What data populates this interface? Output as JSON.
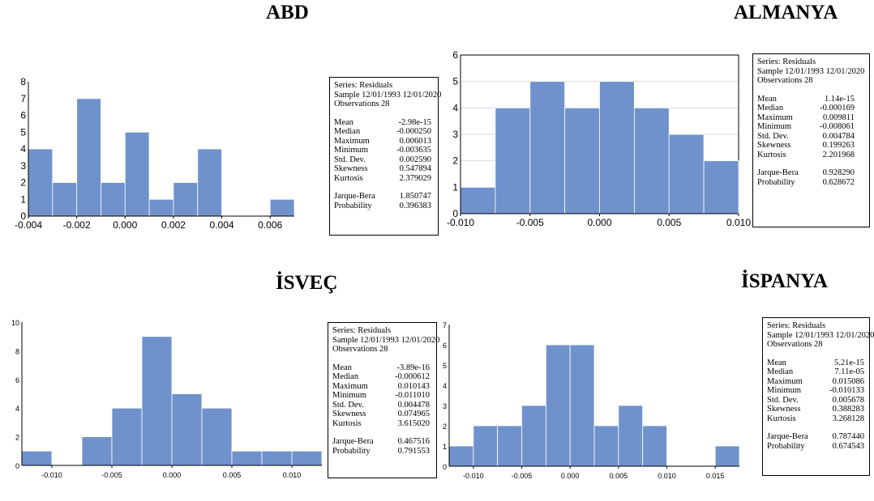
{
  "panels": [
    {
      "country": "ABD",
      "stats": {
        "series_line": "Series: Residuals",
        "sample_line": "Sample 12/01/1993 12/01/2020",
        "obs_line": "Observations 28",
        "rows": [
          {
            "label": "Mean",
            "value": "-2.98e-15"
          },
          {
            "label": "Median",
            "value": "-0.000250"
          },
          {
            "label": "Maximum",
            "value": "0.006013"
          },
          {
            "label": "Minimum",
            "value": "-0.003635"
          },
          {
            "label": "Std. Dev.",
            "value": "0.002590"
          },
          {
            "label": "Skewness",
            "value": "0.547894"
          },
          {
            "label": "Kurtosis",
            "value": "2.379029"
          }
        ],
        "test_rows": [
          {
            "label": "Jarque-Bera",
            "value": "1.850747"
          },
          {
            "label": "Probability",
            "value": "0.396383"
          }
        ]
      }
    },
    {
      "country": "ALMANYA",
      "stats": {
        "series_line": "Series: Residuals",
        "sample_line": "Sample 12/01/1993 12/01/2020",
        "obs_line": "Observations 28",
        "rows": [
          {
            "label": "Mean",
            "value": "1.14e-15"
          },
          {
            "label": "Median",
            "value": "-0.000169"
          },
          {
            "label": "Maximum",
            "value": "0.009811"
          },
          {
            "label": "Minimum",
            "value": "-0.008061"
          },
          {
            "label": "Std. Dev.",
            "value": "0.004784"
          },
          {
            "label": "Skewness",
            "value": "0.199263"
          },
          {
            "label": "Kurtosis",
            "value": "2.201968"
          }
        ],
        "test_rows": [
          {
            "label": "Jarque-Bera",
            "value": "0.928290"
          },
          {
            "label": "Probability",
            "value": "0.628672"
          }
        ]
      }
    },
    {
      "country": "İSVEÇ",
      "stats": {
        "series_line": "Series: Residuals",
        "sample_line": "Sample 12/01/1993 12/01/2020",
        "obs_line": "Observations 28",
        "rows": [
          {
            "label": "Mean",
            "value": "-3.89e-16"
          },
          {
            "label": "Median",
            "value": "-0.000612"
          },
          {
            "label": "Maximum",
            "value": "0.010143"
          },
          {
            "label": "Minimum",
            "value": "-0.011010"
          },
          {
            "label": "Std. Dev.",
            "value": "0.004478"
          },
          {
            "label": "Skewness",
            "value": "0.074965"
          },
          {
            "label": "Kurtosis",
            "value": "3.615020"
          }
        ],
        "test_rows": [
          {
            "label": "Jarque-Bera",
            "value": "0.467516"
          },
          {
            "label": "Probability",
            "value": "0.791553"
          }
        ]
      }
    },
    {
      "country": "İSPANYA",
      "stats": {
        "series_line": "Series: Residuals",
        "sample_line": "Sample 12/01/1993 12/01/2020",
        "obs_line": "Observations 28",
        "rows": [
          {
            "label": "Mean",
            "value": "5.21e-15"
          },
          {
            "label": "Median",
            "value": "7.11e-05"
          },
          {
            "label": "Maximum",
            "value": "0.015086"
          },
          {
            "label": "Minimum",
            "value": "-0.010133"
          },
          {
            "label": "Std. Dev.",
            "value": "0.005678"
          },
          {
            "label": "Skewness",
            "value": "0.388283"
          },
          {
            "label": "Kurtosis",
            "value": "3.268128"
          }
        ],
        "test_rows": [
          {
            "label": "Jarque-Bera",
            "value": "0.787440"
          },
          {
            "label": "Probability",
            "value": "0.674543"
          }
        ]
      }
    }
  ],
  "chart_data": [
    {
      "type": "bar",
      "title": "ABD",
      "bar_color": "#7092cc",
      "bins": [
        {
          "x0": -0.004,
          "x1": -0.003,
          "count": 4
        },
        {
          "x0": -0.003,
          "x1": -0.002,
          "count": 2
        },
        {
          "x0": -0.002,
          "x1": -0.001,
          "count": 7
        },
        {
          "x0": -0.001,
          "x1": 0.0,
          "count": 2
        },
        {
          "x0": 0.0,
          "x1": 0.001,
          "count": 5
        },
        {
          "x0": 0.001,
          "x1": 0.002,
          "count": 1
        },
        {
          "x0": 0.002,
          "x1": 0.003,
          "count": 2
        },
        {
          "x0": 0.003,
          "x1": 0.004,
          "count": 4
        },
        {
          "x0": 0.006,
          "x1": 0.007,
          "count": 1
        }
      ],
      "xlim": [
        -0.004,
        0.007
      ],
      "ylim": [
        0,
        8
      ],
      "x_ticks": [
        -0.004,
        -0.002,
        0.0,
        0.002,
        0.004,
        0.006
      ],
      "x_tick_labels": [
        "-0.004",
        "-0.002",
        "0.000",
        "0.002",
        "0.004",
        "0.006"
      ],
      "y_ticks": [
        0,
        1,
        2,
        3,
        4,
        5,
        6,
        7,
        8
      ],
      "y_tick_labels": [
        "0",
        "1",
        "2",
        "3",
        "4",
        "5",
        "6",
        "7",
        "8"
      ],
      "grid": false
    },
    {
      "type": "bar",
      "title": "ALMANYA",
      "bar_color": "#7092cc",
      "bins": [
        {
          "x0": -0.01,
          "x1": -0.0075,
          "count": 1
        },
        {
          "x0": -0.0075,
          "x1": -0.005,
          "count": 4
        },
        {
          "x0": -0.005,
          "x1": -0.0025,
          "count": 5
        },
        {
          "x0": -0.0025,
          "x1": 0.0,
          "count": 4
        },
        {
          "x0": 0.0,
          "x1": 0.0025,
          "count": 5
        },
        {
          "x0": 0.0025,
          "x1": 0.005,
          "count": 4
        },
        {
          "x0": 0.005,
          "x1": 0.0075,
          "count": 3
        },
        {
          "x0": 0.0075,
          "x1": 0.01,
          "count": 2
        }
      ],
      "xlim": [
        -0.01,
        0.01
      ],
      "ylim": [
        0,
        6
      ],
      "x_ticks": [
        -0.01,
        -0.005,
        0.0,
        0.005,
        0.01
      ],
      "x_tick_labels": [
        "-0.010",
        "-0.005",
        "0.000",
        "0.005",
        "0.010"
      ],
      "y_ticks": [
        0,
        1,
        2,
        3,
        4,
        5,
        6
      ],
      "y_tick_labels": [
        "0",
        "1",
        "2",
        "3",
        "4",
        "5",
        "6"
      ],
      "grid": true
    },
    {
      "type": "bar",
      "title": "İSVEÇ",
      "bar_color": "#7092cc",
      "bins": [
        {
          "x0": -0.0125,
          "x1": -0.01,
          "count": 1
        },
        {
          "x0": -0.0075,
          "x1": -0.005,
          "count": 2
        },
        {
          "x0": -0.005,
          "x1": -0.0025,
          "count": 4
        },
        {
          "x0": -0.0025,
          "x1": 0.0,
          "count": 9
        },
        {
          "x0": 0.0,
          "x1": 0.0025,
          "count": 5
        },
        {
          "x0": 0.0025,
          "x1": 0.005,
          "count": 4
        },
        {
          "x0": 0.005,
          "x1": 0.0075,
          "count": 1
        },
        {
          "x0": 0.0075,
          "x1": 0.01,
          "count": 1
        },
        {
          "x0": 0.01,
          "x1": 0.0125,
          "count": 1
        }
      ],
      "xlim": [
        -0.0125,
        0.0125
      ],
      "ylim": [
        0,
        10
      ],
      "x_ticks": [
        -0.01,
        -0.005,
        0.0,
        0.005,
        0.01
      ],
      "x_tick_labels": [
        "-0.010",
        "-0.005",
        "0.000",
        "0.005",
        "0.010"
      ],
      "y_ticks": [
        0,
        2,
        4,
        6,
        8,
        10
      ],
      "y_tick_labels": [
        "0",
        "2",
        "4",
        "6",
        "8",
        "10"
      ],
      "grid": false
    },
    {
      "type": "bar",
      "title": "İSPANYA",
      "bar_color": "#7092cc",
      "bins": [
        {
          "x0": -0.0125,
          "x1": -0.01,
          "count": 1
        },
        {
          "x0": -0.01,
          "x1": -0.0075,
          "count": 2
        },
        {
          "x0": -0.0075,
          "x1": -0.005,
          "count": 2
        },
        {
          "x0": -0.005,
          "x1": -0.0025,
          "count": 3
        },
        {
          "x0": -0.0025,
          "x1": 0.0,
          "count": 6
        },
        {
          "x0": 0.0,
          "x1": 0.0025,
          "count": 6
        },
        {
          "x0": 0.0025,
          "x1": 0.005,
          "count": 2
        },
        {
          "x0": 0.005,
          "x1": 0.0075,
          "count": 3
        },
        {
          "x0": 0.0075,
          "x1": 0.01,
          "count": 2
        },
        {
          "x0": 0.015,
          "x1": 0.0175,
          "count": 1
        }
      ],
      "xlim": [
        -0.0125,
        0.0175
      ],
      "ylim": [
        0,
        7
      ],
      "x_ticks": [
        -0.01,
        -0.005,
        0.0,
        0.005,
        0.01,
        0.015
      ],
      "x_tick_labels": [
        "-0.010",
        "-0.005",
        "0.000",
        "0.005",
        "0.010",
        "0.015"
      ],
      "y_ticks": [
        0,
        1,
        2,
        3,
        4,
        5,
        6,
        7
      ],
      "y_tick_labels": [
        "0",
        "1",
        "2",
        "3",
        "4",
        "5",
        "6",
        "7"
      ],
      "grid": false
    }
  ]
}
